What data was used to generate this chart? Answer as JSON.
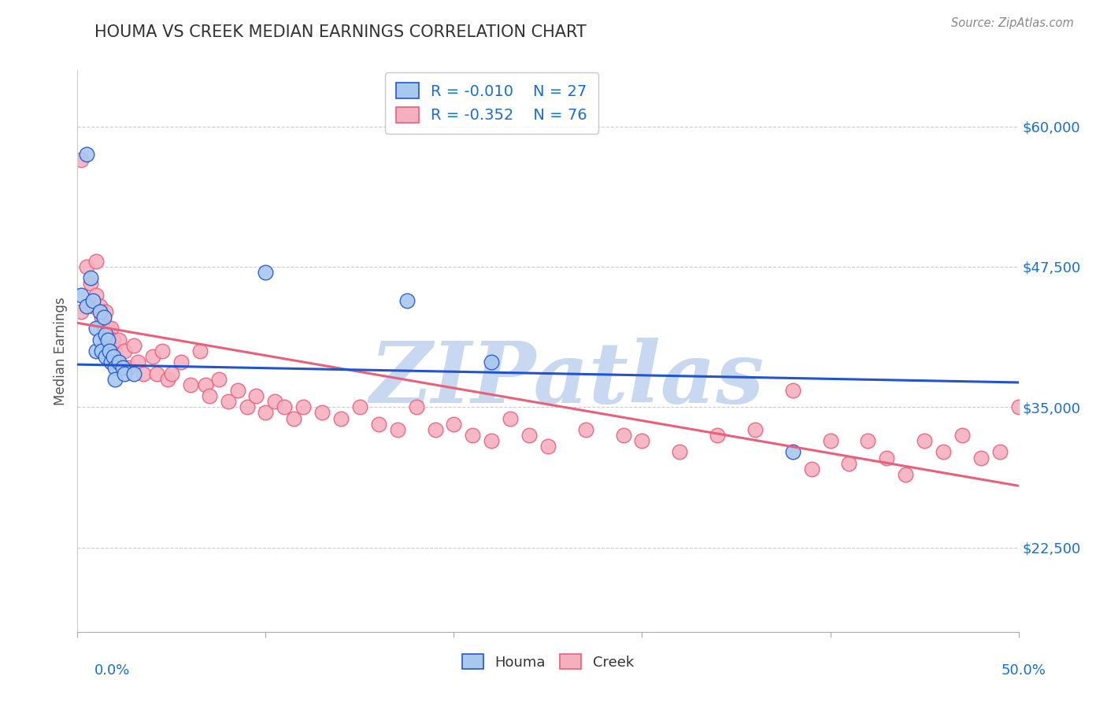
{
  "title": "HOUMA VS CREEK MEDIAN EARNINGS CORRELATION CHART",
  "source": "Source: ZipAtlas.com",
  "ylabel": "Median Earnings",
  "yticks": [
    22500,
    35000,
    47500,
    60000
  ],
  "ytick_labels": [
    "$22,500",
    "$35,000",
    "$47,500",
    "$60,000"
  ],
  "xlim": [
    0.0,
    0.5
  ],
  "ylim": [
    15000,
    65000
  ],
  "houma_R": -0.01,
  "houma_N": 27,
  "creek_R": -0.352,
  "creek_N": 76,
  "houma_color": "#a8c8f0",
  "creek_color": "#f5b0c0",
  "houma_line_color": "#2255cc",
  "creek_line_color": "#e8607a",
  "legend_text_color": "#1a6fcc",
  "grid_color": "#cccccc",
  "title_color": "#333333",
  "watermark": "ZIPatlas",
  "watermark_color": "#c8d8f0",
  "houma_x": [
    0.002,
    0.005,
    0.005,
    0.007,
    0.008,
    0.01,
    0.01,
    0.012,
    0.012,
    0.013,
    0.014,
    0.015,
    0.015,
    0.016,
    0.017,
    0.018,
    0.019,
    0.02,
    0.02,
    0.022,
    0.024,
    0.025,
    0.03,
    0.1,
    0.175,
    0.22,
    0.38
  ],
  "houma_y": [
    45000,
    57500,
    44000,
    46500,
    44500,
    42000,
    40000,
    43500,
    41000,
    40000,
    43000,
    41500,
    39500,
    41000,
    40000,
    39000,
    39500,
    38500,
    37500,
    39000,
    38500,
    38000,
    38000,
    47000,
    44500,
    39000,
    31000
  ],
  "creek_x": [
    0.002,
    0.005,
    0.007,
    0.008,
    0.01,
    0.01,
    0.012,
    0.013,
    0.014,
    0.015,
    0.015,
    0.016,
    0.017,
    0.018,
    0.019,
    0.02,
    0.021,
    0.022,
    0.025,
    0.027,
    0.03,
    0.032,
    0.035,
    0.04,
    0.042,
    0.045,
    0.048,
    0.05,
    0.055,
    0.06,
    0.065,
    0.068,
    0.07,
    0.075,
    0.08,
    0.085,
    0.09,
    0.095,
    0.1,
    0.105,
    0.11,
    0.115,
    0.12,
    0.13,
    0.14,
    0.15,
    0.16,
    0.17,
    0.18,
    0.19,
    0.2,
    0.21,
    0.22,
    0.23,
    0.24,
    0.25,
    0.27,
    0.29,
    0.3,
    0.32,
    0.34,
    0.36,
    0.38,
    0.39,
    0.4,
    0.41,
    0.42,
    0.43,
    0.44,
    0.45,
    0.46,
    0.47,
    0.48,
    0.49,
    0.5,
    0.002
  ],
  "creek_y": [
    43500,
    47500,
    46000,
    44000,
    48000,
    45000,
    44000,
    43000,
    42000,
    43500,
    41000,
    42000,
    40500,
    42000,
    41000,
    40000,
    39000,
    41000,
    40000,
    38500,
    40500,
    39000,
    38000,
    39500,
    38000,
    40000,
    37500,
    38000,
    39000,
    37000,
    40000,
    37000,
    36000,
    37500,
    35500,
    36500,
    35000,
    36000,
    34500,
    35500,
    35000,
    34000,
    35000,
    34500,
    34000,
    35000,
    33500,
    33000,
    35000,
    33000,
    33500,
    32500,
    32000,
    34000,
    32500,
    31500,
    33000,
    32500,
    32000,
    31000,
    32500,
    33000,
    36500,
    29500,
    32000,
    30000,
    32000,
    30500,
    29000,
    32000,
    31000,
    32500,
    30500,
    31000,
    35000,
    57000
  ],
  "houma_trendline_x": [
    0.0,
    0.5
  ],
  "houma_trendline_y": [
    38800,
    37200
  ],
  "creek_trendline_x": [
    0.0,
    0.5
  ],
  "creek_trendline_y": [
    42500,
    28000
  ]
}
